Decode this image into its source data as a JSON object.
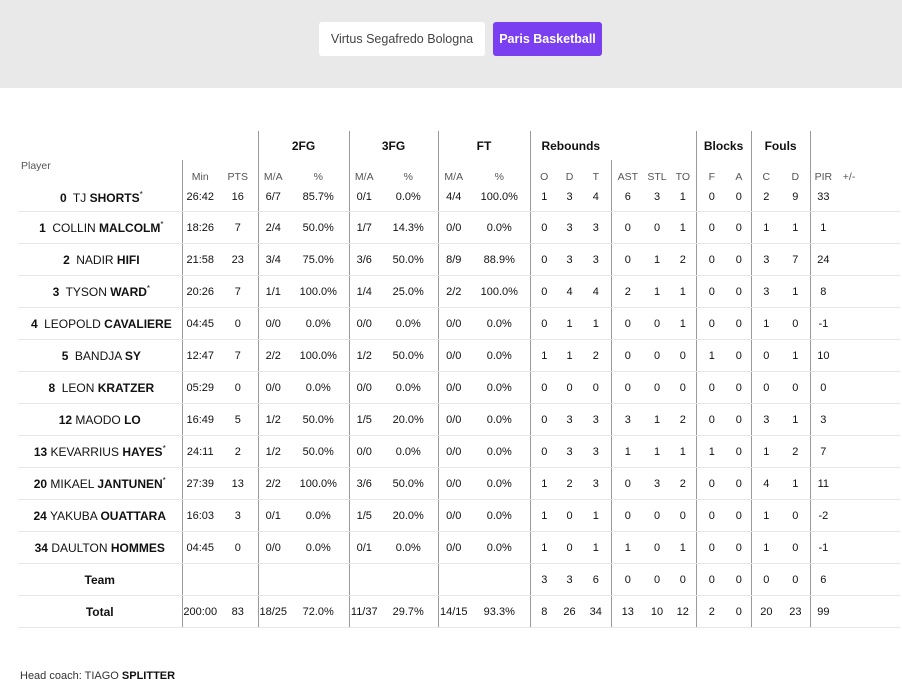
{
  "tabs": {
    "home": "Virtus Segafredo Bologna",
    "away": "Paris Basketball"
  },
  "groups": {
    "fg2": "2FG",
    "fg3": "3FG",
    "ft": "FT",
    "reb": "Rebounds",
    "blocks": "Blocks",
    "fouls": "Fouls"
  },
  "columns": {
    "player": "Player",
    "min": "Min",
    "pts": "PTS",
    "ma1": "M/A",
    "pct1": "%",
    "ma2": "M/A",
    "pct2": "%",
    "ma3": "M/A",
    "pct3": "%",
    "o": "O",
    "d": "D",
    "t": "T",
    "ast": "AST",
    "stl": "STL",
    "to": "TO",
    "bf": "F",
    "ba": "A",
    "fc": "C",
    "fd": "D",
    "pir": "PIR",
    "pm": "+/-"
  },
  "players": [
    {
      "num": "0",
      "first": "TJ ",
      "last": "SHORTS",
      "star": "*",
      "min": "26:42",
      "pts": "16",
      "ma2": "6/7",
      "p2": "85.7%",
      "ma3": "0/1",
      "p3": "0.0%",
      "maft": "4/4",
      "pft": "100.0%",
      "o": "1",
      "d": "3",
      "t": "4",
      "ast": "6",
      "stl": "3",
      "to": "1",
      "bf": "0",
      "ba": "0",
      "fc": "2",
      "fd": "9",
      "pir": "33",
      "pm": ""
    },
    {
      "num": "1",
      "first": "COLLIN ",
      "last": "MALCOLM",
      "star": "*",
      "min": "18:26",
      "pts": "7",
      "ma2": "2/4",
      "p2": "50.0%",
      "ma3": "1/7",
      "p3": "14.3%",
      "maft": "0/0",
      "pft": "0.0%",
      "o": "0",
      "d": "3",
      "t": "3",
      "ast": "0",
      "stl": "0",
      "to": "1",
      "bf": "0",
      "ba": "0",
      "fc": "1",
      "fd": "1",
      "pir": "1",
      "pm": ""
    },
    {
      "num": "2",
      "first": "NADIR ",
      "last": "HIFI",
      "star": "",
      "min": "21:58",
      "pts": "23",
      "ma2": "3/4",
      "p2": "75.0%",
      "ma3": "3/6",
      "p3": "50.0%",
      "maft": "8/9",
      "pft": "88.9%",
      "o": "0",
      "d": "3",
      "t": "3",
      "ast": "0",
      "stl": "1",
      "to": "2",
      "bf": "0",
      "ba": "0",
      "fc": "3",
      "fd": "7",
      "pir": "24",
      "pm": ""
    },
    {
      "num": "3",
      "first": "TYSON ",
      "last": "WARD",
      "star": "*",
      "min": "20:26",
      "pts": "7",
      "ma2": "1/1",
      "p2": "100.0%",
      "ma3": "1/4",
      "p3": "25.0%",
      "maft": "2/2",
      "pft": "100.0%",
      "o": "0",
      "d": "4",
      "t": "4",
      "ast": "2",
      "stl": "1",
      "to": "1",
      "bf": "0",
      "ba": "0",
      "fc": "3",
      "fd": "1",
      "pir": "8",
      "pm": ""
    },
    {
      "num": "4",
      "first": "LEOPOLD ",
      "last": "CAVALIERE",
      "star": "",
      "min": "04:45",
      "pts": "0",
      "ma2": "0/0",
      "p2": "0.0%",
      "ma3": "0/0",
      "p3": "0.0%",
      "maft": "0/0",
      "pft": "0.0%",
      "o": "0",
      "d": "1",
      "t": "1",
      "ast": "0",
      "stl": "0",
      "to": "1",
      "bf": "0",
      "ba": "0",
      "fc": "1",
      "fd": "0",
      "pir": "-1",
      "pm": ""
    },
    {
      "num": "5",
      "first": "BANDJA ",
      "last": "SY",
      "star": "",
      "min": "12:47",
      "pts": "7",
      "ma2": "2/2",
      "p2": "100.0%",
      "ma3": "1/2",
      "p3": "50.0%",
      "maft": "0/0",
      "pft": "0.0%",
      "o": "1",
      "d": "1",
      "t": "2",
      "ast": "0",
      "stl": "0",
      "to": "0",
      "bf": "1",
      "ba": "0",
      "fc": "0",
      "fd": "1",
      "pir": "10",
      "pm": ""
    },
    {
      "num": "8",
      "first": "LEON ",
      "last": "KRATZER",
      "star": "",
      "min": "05:29",
      "pts": "0",
      "ma2": "0/0",
      "p2": "0.0%",
      "ma3": "0/0",
      "p3": "0.0%",
      "maft": "0/0",
      "pft": "0.0%",
      "o": "0",
      "d": "0",
      "t": "0",
      "ast": "0",
      "stl": "0",
      "to": "0",
      "bf": "0",
      "ba": "0",
      "fc": "0",
      "fd": "0",
      "pir": "0",
      "pm": ""
    },
    {
      "num": "12",
      "first": "MAODO ",
      "last": "LO",
      "star": "",
      "min": "16:49",
      "pts": "5",
      "ma2": "1/2",
      "p2": "50.0%",
      "ma3": "1/5",
      "p3": "20.0%",
      "maft": "0/0",
      "pft": "0.0%",
      "o": "0",
      "d": "3",
      "t": "3",
      "ast": "3",
      "stl": "1",
      "to": "2",
      "bf": "0",
      "ba": "0",
      "fc": "3",
      "fd": "1",
      "pir": "3",
      "pm": ""
    },
    {
      "num": "13",
      "first": "KEVARRIUS ",
      "last": "HAYES",
      "star": "*",
      "min": "24:11",
      "pts": "2",
      "ma2": "1/2",
      "p2": "50.0%",
      "ma3": "0/0",
      "p3": "0.0%",
      "maft": "0/0",
      "pft": "0.0%",
      "o": "0",
      "d": "3",
      "t": "3",
      "ast": "1",
      "stl": "1",
      "to": "1",
      "bf": "1",
      "ba": "0",
      "fc": "1",
      "fd": "2",
      "pir": "7",
      "pm": ""
    },
    {
      "num": "20",
      "first": "MIKAEL ",
      "last": "JANTUNEN",
      "star": "*",
      "min": "27:39",
      "pts": "13",
      "ma2": "2/2",
      "p2": "100.0%",
      "ma3": "3/6",
      "p3": "50.0%",
      "maft": "0/0",
      "pft": "0.0%",
      "o": "1",
      "d": "2",
      "t": "3",
      "ast": "0",
      "stl": "3",
      "to": "2",
      "bf": "0",
      "ba": "0",
      "fc": "4",
      "fd": "1",
      "pir": "11",
      "pm": ""
    },
    {
      "num": "24",
      "first": "YAKUBA ",
      "last": "OUATTARA",
      "star": "",
      "min": "16:03",
      "pts": "3",
      "ma2": "0/1",
      "p2": "0.0%",
      "ma3": "1/5",
      "p3": "20.0%",
      "maft": "0/0",
      "pft": "0.0%",
      "o": "1",
      "d": "0",
      "t": "1",
      "ast": "0",
      "stl": "0",
      "to": "0",
      "bf": "0",
      "ba": "0",
      "fc": "1",
      "fd": "0",
      "pir": "-2",
      "pm": ""
    },
    {
      "num": "34",
      "first": "DAULTON ",
      "last": "HOMMES",
      "star": "",
      "min": "04:45",
      "pts": "0",
      "ma2": "0/0",
      "p2": "0.0%",
      "ma3": "0/1",
      "p3": "0.0%",
      "maft": "0/0",
      "pft": "0.0%",
      "o": "1",
      "d": "0",
      "t": "1",
      "ast": "1",
      "stl": "0",
      "to": "1",
      "bf": "0",
      "ba": "0",
      "fc": "1",
      "fd": "0",
      "pir": "-1",
      "pm": ""
    }
  ],
  "team_row": {
    "label": "Team",
    "o": "3",
    "d": "3",
    "t": "6",
    "ast": "0",
    "stl": "0",
    "to": "0",
    "bf": "0",
    "ba": "0",
    "fc": "0",
    "fd": "0",
    "pir": "6"
  },
  "total_row": {
    "label": "Total",
    "min": "200:00",
    "pts": "83",
    "ma2": "18/25",
    "p2": "72.0%",
    "ma3": "11/37",
    "p3": "29.7%",
    "maft": "14/15",
    "pft": "93.3%",
    "o": "8",
    "d": "26",
    "t": "34",
    "ast": "13",
    "stl": "10",
    "to": "12",
    "bf": "2",
    "ba": "0",
    "fc": "20",
    "fd": "23",
    "pir": "99",
    "pm": ""
  },
  "coach": {
    "label": "Head coach: ",
    "first": "TIAGO ",
    "last": "SPLITTER"
  },
  "colors": {
    "accent": "#7b3ff2",
    "topbar": "#e9e9e9",
    "divider": "#9a9a9a"
  }
}
